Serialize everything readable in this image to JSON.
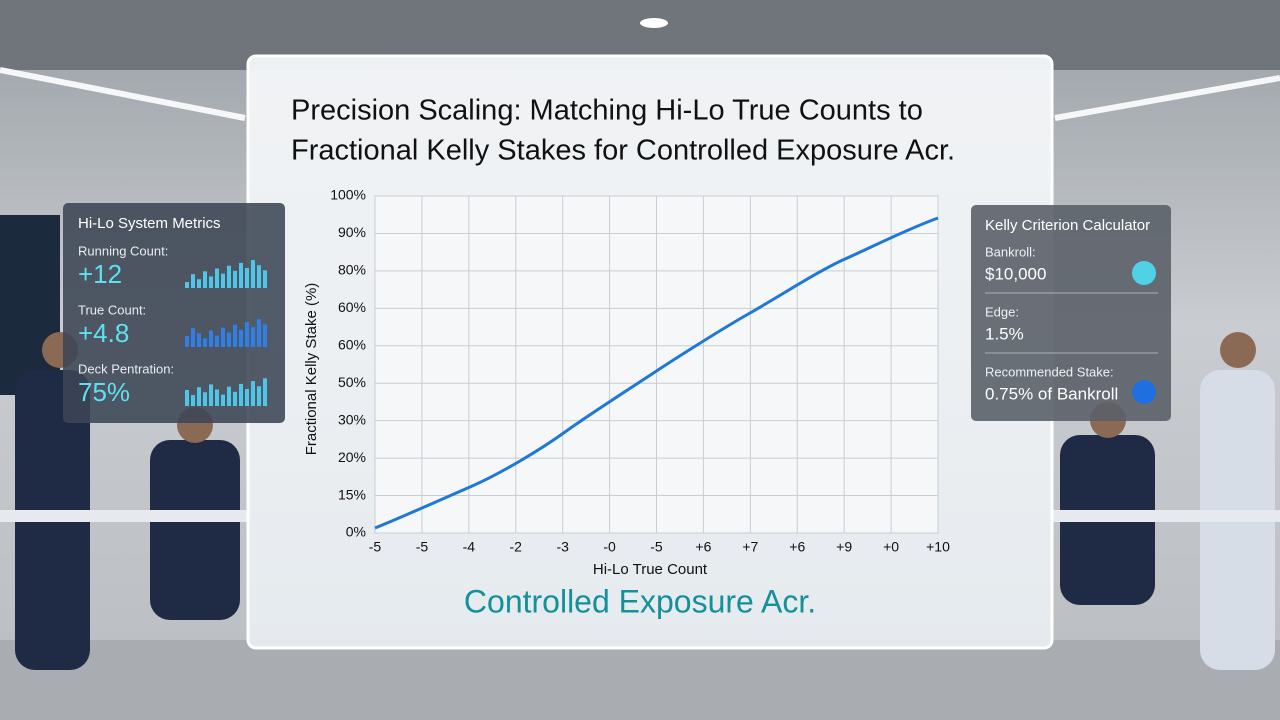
{
  "header": {
    "title_lines": [
      "Precision Scaling: Matching Hi-Lo True Counts to",
      "Fractional Kelly Stakes for Controlled Exposure Acr."
    ]
  },
  "chart": {
    "y_axis_title": "Fractional Kelly Stake (%)",
    "y_tick_labels": [
      "0%",
      "15%",
      "20%",
      "30%",
      "50%",
      "60%",
      "60%",
      "80%",
      "90%",
      "100%"
    ],
    "x_axis_title": "Hi-Lo True Count",
    "x_tick_labels": [
      "-5",
      "-5",
      "-4",
      "-2",
      "-3",
      "-0",
      "-5",
      "+6",
      "+7",
      "+6",
      "+9",
      "+0",
      "+10"
    ],
    "caption": "Controlled Exposure Acr."
  },
  "left_panel": {
    "title": "Hi-Lo System Metrics",
    "metrics": [
      {
        "label": "Running Count:",
        "value": "+12"
      },
      {
        "label": "True Count:",
        "value": "+4.8"
      },
      {
        "label": "Deck Pentration:",
        "value": "75%"
      }
    ]
  },
  "right_panel": {
    "title": "Kelly Criterion Calculator",
    "fields": [
      {
        "label": "Bankroll:",
        "value": "$10,000"
      },
      {
        "label": "Edge:",
        "value": "1.5%"
      },
      {
        "label": "Recommended Stake:",
        "value": "0.75% of Bankroll"
      }
    ]
  }
}
